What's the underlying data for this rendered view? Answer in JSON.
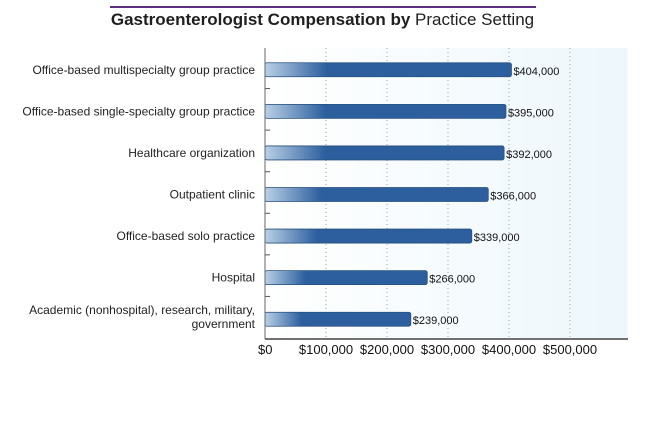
{
  "chart_data": {
    "type": "bar",
    "orientation": "horizontal",
    "title_bold_part": "Gastroenterologist Compensation by",
    "title_normal_part": "Practice Setting",
    "categories": [
      "Office-based multispecialty group practice",
      "Office-based single-specialty group practice",
      "Healthcare organization",
      "Outpatient clinic",
      "Office-based solo practice",
      "Hospital",
      "Academic (nonhospital), research, military, government"
    ],
    "category_lines": [
      [
        "Office-based multispecialty group practice"
      ],
      [
        "Office-based single-specialty group practice"
      ],
      [
        "Healthcare organization"
      ],
      [
        "Outpatient clinic"
      ],
      [
        "Office-based solo practice"
      ],
      [
        "Hospital"
      ],
      [
        "Academic (nonhospital), research, military,",
        "government"
      ]
    ],
    "values": [
      404000,
      395000,
      392000,
      366000,
      339000,
      266000,
      239000
    ],
    "value_labels": [
      "$404,000",
      "$395,000",
      "$392,000",
      "$366,000",
      "$339,000",
      "$266,000",
      "$239,000"
    ],
    "xlim": [
      0,
      600000
    ],
    "x_ticks": [
      0,
      100000,
      200000,
      300000,
      400000,
      500000
    ],
    "x_tick_labels": [
      "$0",
      "$100,000",
      "$200,000",
      "$300,000",
      "$400,000",
      "$500,000"
    ],
    "grid": "vertical-dotted",
    "xlabel": "",
    "ylabel": "",
    "colors": {
      "bar_dark": "#2d5f9e",
      "bar_light": "#b9d0e6",
      "bar_border": "#25507f",
      "plot_bg": "#edf7fc",
      "title_rule": "#5a2e82"
    }
  }
}
